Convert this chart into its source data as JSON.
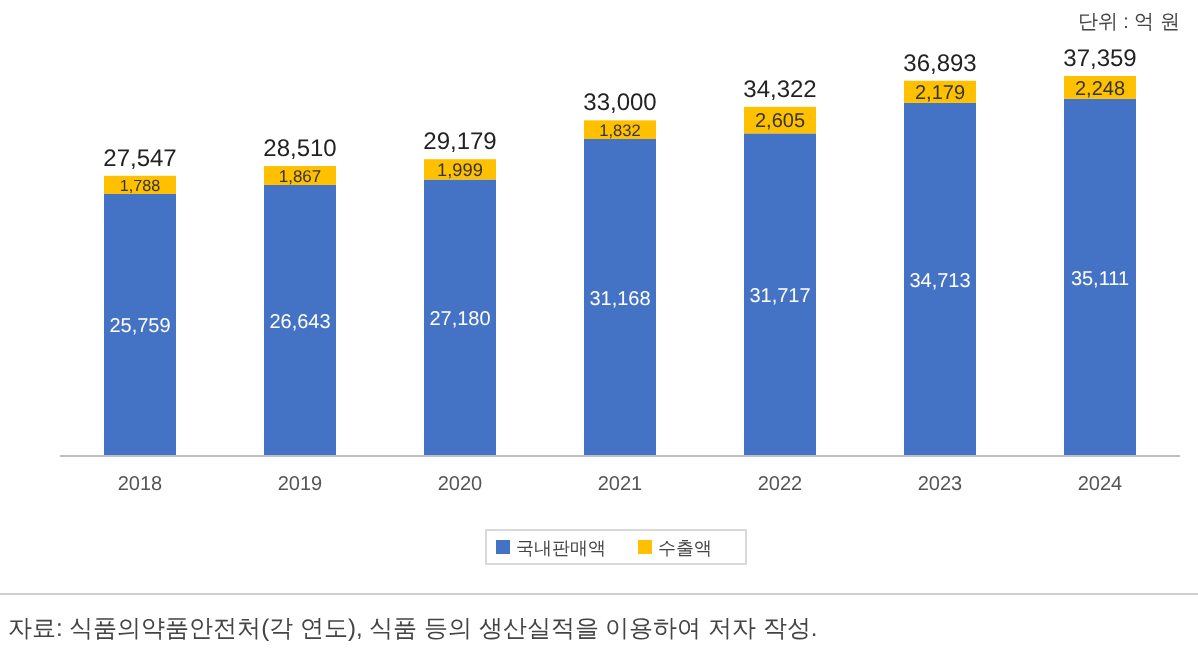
{
  "chart_data": {
    "type": "bar",
    "stacked": true,
    "legend": "bottom",
    "categories": [
      "2018",
      "2019",
      "2020",
      "2021",
      "2022",
      "2023",
      "2024"
    ],
    "series": [
      {
        "name": "국내판매액",
        "color": "#4472c4",
        "values": [
          25759,
          26643,
          27180,
          31168,
          31717,
          34713,
          35111
        ],
        "value_labels": [
          "25,759",
          "26,643",
          "27,180",
          "31,168",
          "31,717",
          "34,713",
          "35,111"
        ]
      },
      {
        "name": "수출액",
        "color": "#ffc000",
        "values": [
          1788,
          1867,
          1999,
          1832,
          2605,
          2179,
          2248
        ],
        "value_labels": [
          "1,788",
          "1,867",
          "1,999",
          "1,832",
          "2,605",
          "2,179",
          "2,248"
        ]
      }
    ],
    "totals": [
      "27,547",
      "28,510",
      "29,179",
      "33,000",
      "34,322",
      "36,893",
      "37,359"
    ],
    "annotations": [
      "단위 : 억 원",
      "자료: 식품의약품안전처(각 연도), 식품 등의 생산실적을 이용하여 저자 작성."
    ]
  }
}
